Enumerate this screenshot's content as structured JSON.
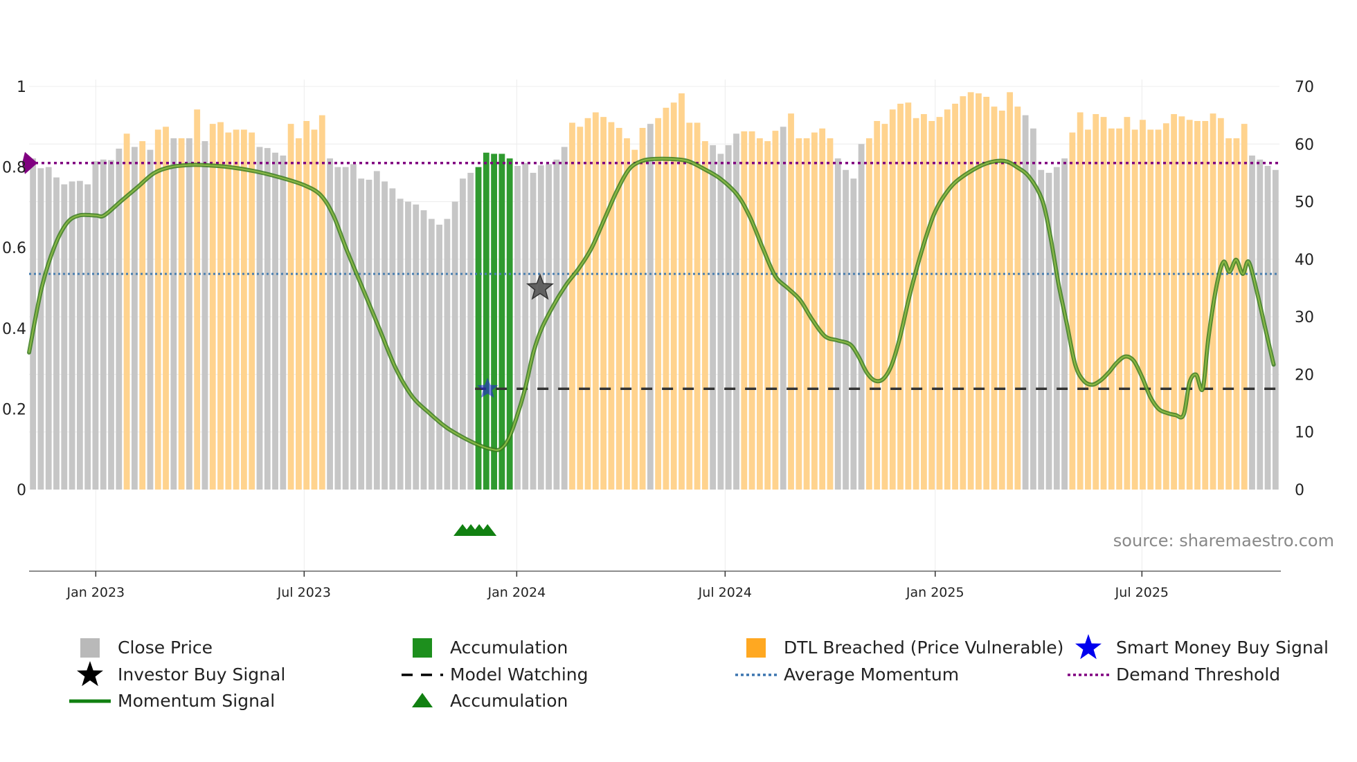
{
  "chart_data": {
    "type": "bar",
    "title": "",
    "source": "source: sharemaestro.com",
    "left_axis": {
      "ylim": [
        0,
        1
      ],
      "ticks": [
        0,
        0.2,
        0.4,
        0.6,
        0.8,
        1
      ],
      "tick_labels": [
        "0",
        "0.2",
        "0.4",
        "0.6",
        "0.8",
        "1"
      ]
    },
    "right_axis": {
      "ylim": [
        0,
        70
      ],
      "ticks": [
        0,
        10,
        20,
        30,
        40,
        50,
        60,
        70
      ],
      "tick_labels": [
        "0",
        "10",
        "20",
        "30",
        "40",
        "50",
        "60",
        "70"
      ]
    },
    "x_axis": {
      "start_week": 0,
      "end_week": 150,
      "ticks": [
        {
          "label": "Jan 2023",
          "week": 8
        },
        {
          "label": "Jul 2023",
          "week": 33
        },
        {
          "label": "Jan 2024",
          "week": 58.5
        },
        {
          "label": "Jul 2024",
          "week": 83.5
        },
        {
          "label": "Jan 2025",
          "week": 108.7
        },
        {
          "label": "Jul 2025",
          "week": 133.5
        }
      ]
    },
    "bar_categories": [
      "grey",
      "green",
      "orange"
    ],
    "bars": {
      "close_price": [
        57.5,
        55.8,
        56.0,
        54.2,
        53.0,
        53.5,
        53.6,
        53.0,
        57.0,
        57.3,
        57.2,
        59.2,
        61.8,
        59.5,
        60.5,
        59.0,
        62.5,
        63.0,
        61.0,
        61.0,
        61.0,
        66.0,
        60.5,
        63.5,
        63.8,
        62.0,
        62.5,
        62.5,
        62.0,
        59.5,
        59.3,
        58.5,
        58.0,
        63.5,
        61.0,
        64.0,
        62.5,
        65.0,
        57.5,
        56.0,
        56.0,
        56.5,
        54.0,
        53.8,
        55.3,
        53.5,
        52.3,
        50.5,
        50.0,
        49.5,
        48.5,
        47.0,
        46.0,
        47.0,
        50.0,
        54.0,
        55.0,
        56.0,
        58.5,
        58.3,
        58.3,
        57.5,
        56.2,
        56.7,
        55.0,
        56.3,
        56.5,
        57.3,
        59.5,
        63.7,
        63.0,
        64.5,
        65.5,
        64.7,
        63.8,
        62.8,
        61.0,
        59.0,
        62.8,
        63.5,
        64.5,
        66.3,
        67.2,
        68.8,
        63.7,
        63.7,
        60.5,
        59.8,
        58.3,
        59.8,
        61.8,
        62.2,
        62.2,
        61.0,
        60.5,
        62.3,
        63.0,
        65.3,
        61.0,
        61.0,
        62.0,
        62.7,
        61.0,
        57.5,
        55.5,
        54.0,
        60.0,
        61.0,
        64.0,
        63.5,
        66.0,
        67.0,
        67.2,
        64.5,
        65.2,
        64.0,
        64.7,
        66.0,
        67.0,
        68.3,
        69.0,
        68.8,
        68.2,
        66.5,
        65.8,
        69.0,
        66.5,
        65.0,
        62.7,
        55.5,
        55.0,
        56.0,
        57.5,
        62.0,
        65.5,
        62.5,
        65.2,
        64.7,
        62.7,
        62.7,
        64.7,
        62.5,
        64.2,
        62.5,
        62.5,
        63.6,
        65.2,
        64.8,
        64.2,
        64.0,
        64.0,
        65.3,
        64.5,
        61.0,
        61.0,
        63.5,
        58.0,
        57.3,
        56.2,
        55.5
      ],
      "category": [
        "grey",
        "grey",
        "grey",
        "grey",
        "grey",
        "grey",
        "grey",
        "grey",
        "grey",
        "grey",
        "grey",
        "grey",
        "orange",
        "grey",
        "orange",
        "grey",
        "orange",
        "orange",
        "grey",
        "orange",
        "grey",
        "orange",
        "grey",
        "orange",
        "orange",
        "orange",
        "orange",
        "orange",
        "orange",
        "grey",
        "grey",
        "grey",
        "grey",
        "orange",
        "orange",
        "orange",
        "orange",
        "orange",
        "grey",
        "grey",
        "grey",
        "grey",
        "grey",
        "grey",
        "grey",
        "grey",
        "grey",
        "grey",
        "grey",
        "grey",
        "grey",
        "grey",
        "grey",
        "grey",
        "grey",
        "grey",
        "grey",
        "green",
        "green",
        "green",
        "green",
        "green",
        "grey",
        "grey",
        "grey",
        "grey",
        "grey",
        "grey",
        "grey",
        "orange",
        "orange",
        "orange",
        "orange",
        "orange",
        "orange",
        "orange",
        "orange",
        "orange",
        "orange",
        "grey",
        "orange",
        "orange",
        "orange",
        "orange",
        "orange",
        "orange",
        "orange",
        "grey",
        "grey",
        "grey",
        "grey",
        "orange",
        "orange",
        "orange",
        "orange",
        "orange",
        "grey",
        "orange",
        "orange",
        "orange",
        "orange",
        "orange",
        "orange",
        "grey",
        "grey",
        "grey",
        "grey",
        "orange",
        "orange",
        "orange",
        "orange",
        "orange",
        "orange",
        "orange",
        "orange",
        "orange",
        "orange",
        "orange",
        "orange",
        "orange",
        "orange",
        "orange",
        "orange",
        "orange",
        "orange",
        "orange",
        "orange",
        "grey",
        "grey",
        "grey",
        "grey",
        "grey",
        "grey",
        "orange",
        "orange",
        "orange",
        "orange",
        "orange",
        "orange",
        "orange",
        "orange",
        "orange",
        "orange",
        "orange",
        "orange",
        "orange",
        "orange",
        "orange",
        "orange",
        "orange",
        "orange",
        "orange",
        "orange",
        "orange",
        "orange",
        "orange",
        "grey",
        "grey",
        "grey",
        "grey",
        "grey"
      ]
    },
    "momentum_signal": [
      [
        0.0,
        0.34
      ],
      [
        1.5,
        0.5
      ],
      [
        3.0,
        0.6
      ],
      [
        4.5,
        0.66
      ],
      [
        6.0,
        0.68
      ],
      [
        8.0,
        0.68
      ],
      [
        9.0,
        0.68
      ],
      [
        11.0,
        0.715
      ],
      [
        13.0,
        0.75
      ],
      [
        15.0,
        0.785
      ],
      [
        17.0,
        0.8
      ],
      [
        19.0,
        0.805
      ],
      [
        21.0,
        0.805
      ],
      [
        24.0,
        0.8
      ],
      [
        27.0,
        0.79
      ],
      [
        30.0,
        0.775
      ],
      [
        33.0,
        0.755
      ],
      [
        35.0,
        0.73
      ],
      [
        36.5,
        0.68
      ],
      [
        38.0,
        0.6
      ],
      [
        40.0,
        0.5
      ],
      [
        42.0,
        0.4
      ],
      [
        44.0,
        0.3
      ],
      [
        46.0,
        0.23
      ],
      [
        48.0,
        0.19
      ],
      [
        50.0,
        0.155
      ],
      [
        52.0,
        0.13
      ],
      [
        54.0,
        0.11
      ],
      [
        55.5,
        0.1
      ],
      [
        56.5,
        0.1
      ],
      [
        57.5,
        0.125
      ],
      [
        58.5,
        0.18
      ],
      [
        59.5,
        0.25
      ],
      [
        60.5,
        0.34
      ],
      [
        61.5,
        0.4
      ],
      [
        63.0,
        0.46
      ],
      [
        64.5,
        0.51
      ],
      [
        66.0,
        0.55
      ],
      [
        67.5,
        0.6
      ],
      [
        69.0,
        0.67
      ],
      [
        70.5,
        0.74
      ],
      [
        72.0,
        0.795
      ],
      [
        73.5,
        0.815
      ],
      [
        75.0,
        0.82
      ],
      [
        77.0,
        0.82
      ],
      [
        79.0,
        0.815
      ],
      [
        81.0,
        0.795
      ],
      [
        83.0,
        0.77
      ],
      [
        85.0,
        0.73
      ],
      [
        86.5,
        0.675
      ],
      [
        88.0,
        0.6
      ],
      [
        89.5,
        0.53
      ],
      [
        91.0,
        0.5
      ],
      [
        92.5,
        0.47
      ],
      [
        94.0,
        0.42
      ],
      [
        95.5,
        0.38
      ],
      [
        97.0,
        0.37
      ],
      [
        98.5,
        0.36
      ],
      [
        99.5,
        0.33
      ],
      [
        100.5,
        0.29
      ],
      [
        101.5,
        0.27
      ],
      [
        102.5,
        0.275
      ],
      [
        103.5,
        0.31
      ],
      [
        104.5,
        0.38
      ],
      [
        105.5,
        0.47
      ],
      [
        106.5,
        0.55
      ],
      [
        107.5,
        0.62
      ],
      [
        108.5,
        0.68
      ],
      [
        109.5,
        0.72
      ],
      [
        111.0,
        0.76
      ],
      [
        113.0,
        0.79
      ],
      [
        115.0,
        0.81
      ],
      [
        117.0,
        0.815
      ],
      [
        118.5,
        0.8
      ],
      [
        120.0,
        0.775
      ],
      [
        121.5,
        0.72
      ],
      [
        122.5,
        0.63
      ],
      [
        123.5,
        0.51
      ],
      [
        124.5,
        0.41
      ],
      [
        125.5,
        0.31
      ],
      [
        126.5,
        0.27
      ],
      [
        127.5,
        0.26
      ],
      [
        128.5,
        0.27
      ],
      [
        129.5,
        0.29
      ],
      [
        130.5,
        0.315
      ],
      [
        131.5,
        0.33
      ],
      [
        132.5,
        0.32
      ],
      [
        133.5,
        0.28
      ],
      [
        134.5,
        0.23
      ],
      [
        135.5,
        0.2
      ],
      [
        136.5,
        0.19
      ],
      [
        137.5,
        0.185
      ],
      [
        138.5,
        0.185
      ],
      [
        139.2,
        0.265
      ],
      [
        140.0,
        0.285
      ],
      [
        140.8,
        0.25
      ],
      [
        141.5,
        0.38
      ],
      [
        142.5,
        0.51
      ],
      [
        143.3,
        0.565
      ],
      [
        144.0,
        0.54
      ],
      [
        144.8,
        0.57
      ],
      [
        145.6,
        0.535
      ],
      [
        146.3,
        0.565
      ],
      [
        147.3,
        0.49
      ],
      [
        148.3,
        0.4
      ],
      [
        149.3,
        0.31
      ]
    ],
    "average_momentum": 0.535,
    "demand_threshold": 0.81,
    "demand_threshold_marker": "left diamond",
    "model_watching": {
      "start_week": 53.5,
      "end_week": 150,
      "level": 0.25
    },
    "accumulation_triangles_weeks": [
      52.0,
      53.0,
      54.0,
      55.0
    ],
    "investor_buy_signal": {
      "week": 61.3,
      "value": 0.5
    },
    "smart_money_buy_signal": {
      "week": 55.0,
      "value": 0.25
    }
  },
  "legend": [
    {
      "label": "Close Price",
      "marker": "grey-square"
    },
    {
      "label": "Accumulation",
      "marker": "green-square"
    },
    {
      "label": "DTL Breached (Price Vulnerable)",
      "marker": "orange-square"
    },
    {
      "label": "Smart Money Buy Signal",
      "marker": "blue-star"
    },
    {
      "label": "Investor Buy Signal",
      "marker": "black-star"
    },
    {
      "label": "Model Watching",
      "marker": "black-dashed-line"
    },
    {
      "label": "Average Momentum",
      "marker": "blue-dotted-line"
    },
    {
      "label": "Demand Threshold",
      "marker": "purple-dotted-line"
    },
    {
      "label": "Momentum Signal",
      "marker": "green-line"
    },
    {
      "label": "Accumulation",
      "marker": "green-triangle"
    }
  ],
  "colors": {
    "grey": "#c6c6c6",
    "green": "#2f9a2f",
    "orange": "#ffd38e",
    "momentum": "#3b7d1d",
    "momentum_glow": "#9ac74a",
    "average": "#4a7fb0",
    "demand": "#800080",
    "watching": "#333333",
    "triangle": "#118011",
    "smart_money": "#1f1fdd",
    "investor": "#000000"
  }
}
